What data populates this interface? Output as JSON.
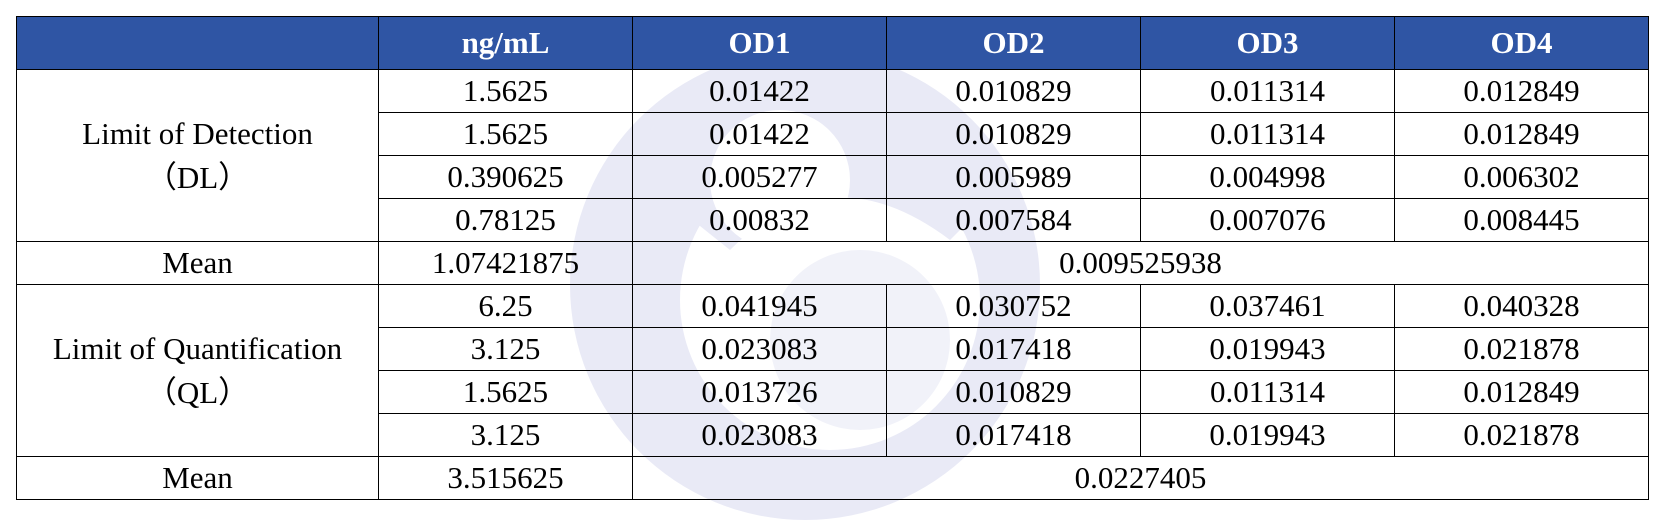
{
  "table": {
    "headers": [
      "",
      "ng/mL",
      "OD1",
      "OD2",
      "OD3",
      "OD4"
    ],
    "dl": {
      "label": "Limit of Detection",
      "abbr": "（DL）",
      "rows": [
        [
          "1.5625",
          "0.01422",
          "0.010829",
          "0.011314",
          "0.012849"
        ],
        [
          "1.5625",
          "0.01422",
          "0.010829",
          "0.011314",
          "0.012849"
        ],
        [
          "0.390625",
          "0.005277",
          "0.005989",
          "0.004998",
          "0.006302"
        ],
        [
          "0.78125",
          "0.00832",
          "0.007584",
          "0.007076",
          "0.008445"
        ]
      ],
      "mean_label": "Mean",
      "mean_conc": "1.07421875",
      "mean_od": "0.009525938"
    },
    "ql": {
      "label": "Limit of Quantification",
      "abbr": "（QL）",
      "rows": [
        [
          "6.25",
          "0.041945",
          "0.030752",
          "0.037461",
          "0.040328"
        ],
        [
          "3.125",
          "0.023083",
          "0.017418",
          "0.019943",
          "0.021878"
        ],
        [
          "1.5625",
          "0.013726",
          "0.010829",
          "0.011314",
          "0.012849"
        ],
        [
          "3.125",
          "0.023083",
          "0.017418",
          "0.019943",
          "0.021878"
        ]
      ],
      "mean_label": "Mean",
      "mean_conc": "3.515625",
      "mean_od": "0.0227405"
    }
  },
  "colors": {
    "header_bg": "#2f55a4",
    "header_text": "#ffffff",
    "border": "#000000",
    "watermark": "#e7e8f5"
  },
  "watermark_icon": "logo-watermark-icon"
}
